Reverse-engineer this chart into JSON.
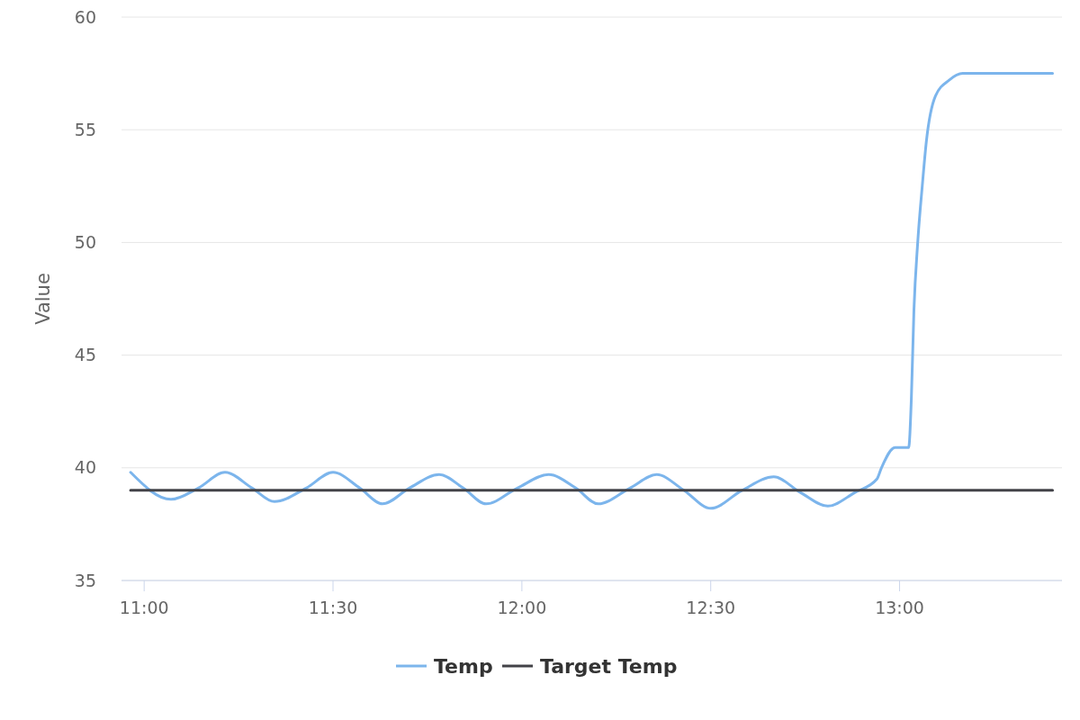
{
  "chart_data": {
    "type": "line",
    "ylabel": "Value",
    "xlim": [
      10.94,
      13.43
    ],
    "ylim": [
      35,
      60
    ],
    "xticks": [
      {
        "value": 11,
        "label": "11:00"
      },
      {
        "value": 11.5,
        "label": "11:30"
      },
      {
        "value": 12,
        "label": "12:00"
      },
      {
        "value": 12.5,
        "label": "12:30"
      },
      {
        "value": 13,
        "label": "13:00"
      }
    ],
    "yticks": [
      35,
      40,
      45,
      50,
      55,
      60
    ],
    "grid": "y",
    "legend": "bottom",
    "series": [
      {
        "name": "Temp",
        "color": "#7cb5ec",
        "x": [
          10.964,
          11.071,
          11.143,
          11.214,
          11.286,
          11.345,
          11.429,
          11.5,
          11.571,
          11.631,
          11.702,
          11.781,
          11.845,
          11.905,
          11.988,
          12.071,
          12.143,
          12.202,
          12.286,
          12.357,
          12.429,
          12.5,
          12.583,
          12.667,
          12.738,
          12.81,
          12.881,
          12.94,
          12.952,
          12.988,
          13.024,
          13.031,
          13.038,
          13.048,
          13.06,
          13.071,
          13.095,
          13.131,
          13.167,
          13.405
        ],
        "values": [
          39.8,
          38.6,
          39.1,
          39.8,
          39.1,
          38.5,
          39.1,
          39.8,
          39.1,
          38.4,
          39.1,
          39.7,
          39.1,
          38.4,
          39.1,
          39.7,
          39.1,
          38.4,
          39.1,
          39.7,
          39.0,
          38.2,
          39.0,
          39.6,
          38.9,
          38.3,
          38.9,
          39.5,
          40.0,
          40.9,
          40.9,
          43,
          47,
          50,
          52.5,
          54.5,
          56.5,
          57.2,
          57.5,
          57.5
        ]
      },
      {
        "name": "Target Temp",
        "color": "#434348",
        "x": [
          10.964,
          13.405
        ],
        "values": [
          39,
          39
        ]
      }
    ]
  }
}
